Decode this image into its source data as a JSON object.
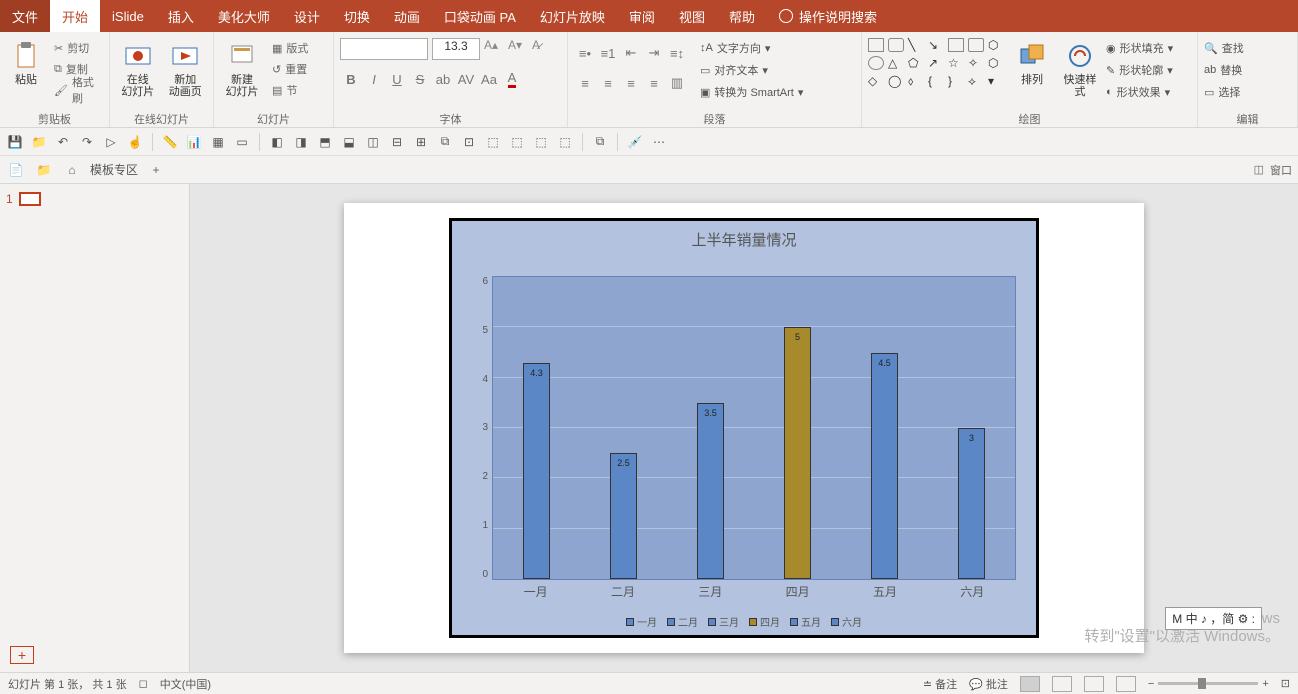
{
  "menu": {
    "file": "文件",
    "tabs": [
      "开始",
      "iSlide",
      "插入",
      "美化大师",
      "设计",
      "切换",
      "动画",
      "口袋动画 PA",
      "幻灯片放映",
      "审阅",
      "视图",
      "帮助"
    ],
    "active_index": 0,
    "search_hint": "操作说明搜索"
  },
  "ribbon": {
    "clipboard": {
      "label": "剪贴板",
      "paste": "粘贴",
      "cut": "剪切",
      "copy": "复制",
      "formatpainter": "格式刷"
    },
    "online": {
      "label": "在线幻灯片",
      "online_slide": "在线\n幻灯片",
      "new_anim": "新加\n动画页"
    },
    "slides": {
      "label": "幻灯片",
      "new_slide": "新建\n幻灯片",
      "layout": "版式",
      "reset": "重置",
      "section": "节"
    },
    "font": {
      "label": "字体",
      "size": "13.3",
      "b": "B",
      "i": "I",
      "u": "U",
      "s": "S",
      "av": "AV",
      "aa": "Aa",
      "clear": "A"
    },
    "para": {
      "label": "段落",
      "textdir": "文字方向",
      "align": "对齐文本",
      "smartart": "转换为 SmartArt"
    },
    "draw": {
      "label": "绘图",
      "arrange": "排列",
      "quickstyle": "快速样式",
      "fill": "形状填充",
      "outline": "形状轮廓",
      "effects": "形状效果"
    },
    "edit": {
      "label": "编辑",
      "find": "查找",
      "replace": "替换",
      "select": "选择"
    }
  },
  "qat": {
    "items": [
      "save",
      "folder",
      "undo",
      "redo",
      "start",
      "touch",
      "ruler",
      "chart",
      "table",
      "slidelib",
      "slidelib2",
      "copy",
      "paste",
      "align-l",
      "align-c",
      "align-r",
      "dist-h",
      "dist-v",
      "group",
      "rotate",
      "a1",
      "a2",
      "a3",
      "a4",
      "a5",
      "eyedrop",
      "more"
    ]
  },
  "tabstrip": {
    "template_zone": "模板专区",
    "right_label": "窗口"
  },
  "thumb": {
    "slide_num": "1"
  },
  "chart": {
    "type": "bar",
    "title": "上半年销量情况",
    "categories": [
      "一月",
      "二月",
      "三月",
      "四月",
      "五月",
      "六月"
    ],
    "values": [
      4.3,
      2.5,
      3.5,
      5,
      4.5,
      3
    ],
    "data_labels": [
      "4.3",
      "2.5",
      "3.5",
      "5",
      "4.5",
      "3"
    ],
    "bar_colors": [
      "#5b87c6",
      "#5b87c6",
      "#5b87c6",
      "#a78a2b",
      "#5b87c6",
      "#5b87c6"
    ],
    "ymax": 6,
    "ytick_step": 1,
    "yticks": [
      "6",
      "5",
      "4",
      "3",
      "2",
      "1",
      "0"
    ],
    "legend": [
      "一月",
      "二月",
      "三月",
      "四月",
      "五月",
      "六月"
    ],
    "legend_colors": [
      "#5b87c6",
      "#5b87c6",
      "#5b87c6",
      "#a78a2b",
      "#5b87c6",
      "#5b87c6"
    ],
    "chart_bg": "#b3c2de",
    "plot_bg": "#8ea5cf",
    "grid_color": "#b3c2de",
    "bar_width_pct": 32
  },
  "status": {
    "slide_info": "幻灯片 第 1 张， 共 1 张",
    "lang": "中文(中国)",
    "notes": "备注",
    "comments": "批注",
    "zoom": "59%",
    "zoom_pos": 40
  },
  "watermark": {
    "l1": "激活 Windows",
    "l2": "转到\"设置\"以激活 Windows。"
  },
  "ime": {
    "text": "M 中 ♪ ，简 ⚙ :"
  }
}
